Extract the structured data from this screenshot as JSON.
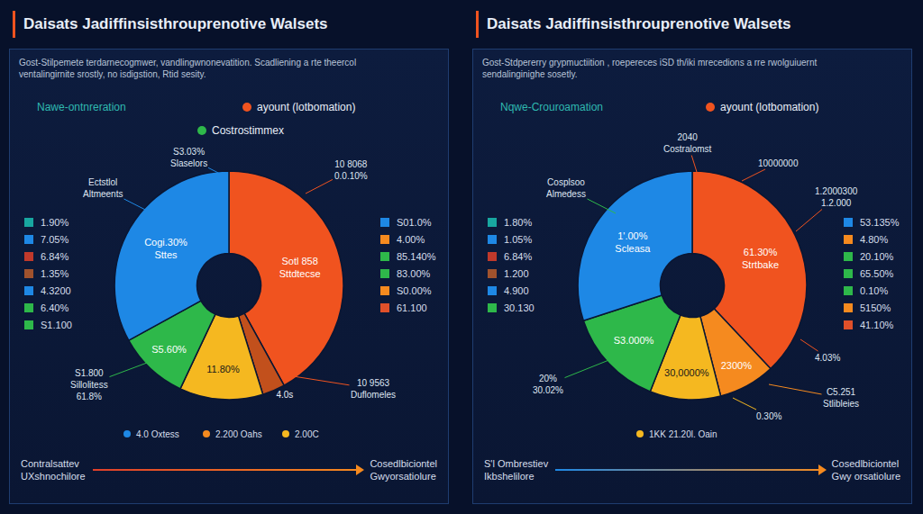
{
  "chart_data": [
    {
      "type": "pie",
      "title": "Daisats Jadiffinsisthrouprenotive Walsets",
      "subtitle": [
        "Gost-Stilpemete terdarnecogmwer, vandlingwnonevatition. Scadliening a rte theercol",
        "ventalingirnite srostly, no isdigstion, Rtid sesity."
      ],
      "header": [
        {
          "name": "Nawe-ontnreration",
          "color": "#2fb9b0",
          "marker": "none"
        },
        {
          "name": "ayount (lotbomation)",
          "color": "#f0531f",
          "marker": "circle"
        },
        {
          "name": "Costrostimmex",
          "color": "#2eb84a",
          "marker": "circle"
        }
      ],
      "categories": [
        "Sotl 858 Sttdtecse",
        "4.0s",
        "11.80%",
        "S5.60%",
        "Cogi.30% Sttes"
      ],
      "values": [
        42,
        3.2,
        11.8,
        10,
        33
      ],
      "colors": [
        "#f0531f",
        "#c2501c",
        "#f5b820",
        "#2eb84a",
        "#1e88e5"
      ],
      "callouts": [
        {
          "lines": [
            "S3.03%",
            "Slaselors"
          ],
          "color": "#1e88e5"
        },
        {
          "lines": [
            "Ectstlol",
            "Altmeents"
          ],
          "color": "#1e88e5"
        },
        {
          "lines": [
            "10 8068",
            "0.0.10%"
          ],
          "color": "#f0531f"
        },
        {
          "lines": [
            "10 9563",
            "Duflomeles"
          ],
          "color": "#f0531f"
        },
        {
          "lines": [
            "S1.800",
            "Sillolitess",
            "61.8%"
          ],
          "color": "#2eb84a"
        }
      ],
      "list_left": [
        {
          "label": "1.90%",
          "color": "#18a7a0"
        },
        {
          "label": "7.05%",
          "color": "#1e88e5"
        },
        {
          "label": "6.84%",
          "color": "#c0392b"
        },
        {
          "label": "1.35%",
          "color": "#a0522d"
        },
        {
          "label": "4.3200",
          "color": "#1e88e5"
        },
        {
          "label": "6.40%",
          "color": "#2eb84a"
        },
        {
          "label": "S1.100",
          "color": "#2eb84a"
        }
      ],
      "list_right": [
        {
          "label": "S01.0%",
          "color": "#1e88e5"
        },
        {
          "label": "4.00%",
          "color": "#f58a1f"
        },
        {
          "label": "85.140%",
          "color": "#2eb84a"
        },
        {
          "label": "83.00%",
          "color": "#2eb84a"
        },
        {
          "label": "S0.00%",
          "color": "#f58a1f"
        },
        {
          "label": "61.100",
          "color": "#e0502a"
        }
      ],
      "bottom_legend": [
        {
          "label": "4.0 Oxtess",
          "color": "#1e88e5"
        },
        {
          "label": "2.200 Oahs",
          "color": "#f58a1f"
        },
        {
          "label": "2.00C",
          "color": "#f5b820"
        }
      ],
      "footer": {
        "left": [
          "Contralsattev",
          "UXshnochilore"
        ],
        "right": [
          "Cosedlbiciontel",
          "Gwyorsatiolure"
        ],
        "colors": [
          "#e0402a",
          "#f58a1f"
        ]
      }
    },
    {
      "type": "pie",
      "title": "Daisats Jadiffinsisthrouprenotive Walsets",
      "subtitle": [
        "Gost-Stdpererry grypmuctiition , roepereces iSD th/iki mrecedions a rre rwolguiuernt",
        "sendalinginighe sosetly."
      ],
      "header": [
        {
          "name": "Nqwe-Crouroamation",
          "color": "#2fb9b0",
          "marker": "none"
        },
        {
          "name": "ayount (lotbomation)",
          "color": "#f0531f",
          "marker": "circle"
        }
      ],
      "categories": [
        "61.30% Strtbake",
        "2300%",
        "30,0000%",
        "S3.000%",
        "1'.00% Scleasa"
      ],
      "values": [
        38,
        8,
        10,
        14,
        30
      ],
      "colors": [
        "#f0531f",
        "#f58a1f",
        "#f5b820",
        "#2eb84a",
        "#1e88e5"
      ],
      "callouts": [
        {
          "lines": [
            "2040",
            "Costralomst"
          ],
          "color": "#f0531f"
        },
        {
          "lines": [
            "Cosplsoo",
            "Almedess"
          ],
          "color": "#2eb84a"
        },
        {
          "lines": [
            "10000000"
          ],
          "color": "#f0531f"
        },
        {
          "lines": [
            "1.2000300",
            "1.2.000"
          ],
          "color": "#f0531f"
        },
        {
          "lines": [
            "4.03%"
          ],
          "color": "#f0531f"
        },
        {
          "lines": [
            "C5.251",
            "Stlibleies"
          ],
          "color": "#f58a1f"
        },
        {
          "lines": [
            "20%",
            "30.02%"
          ],
          "color": "#2eb84a"
        },
        {
          "lines": [
            "0.30%"
          ],
          "color": "#f5b820"
        }
      ],
      "list_left": [
        {
          "label": "1.80%",
          "color": "#18a7a0"
        },
        {
          "label": "1.05%",
          "color": "#1e88e5"
        },
        {
          "label": "6.84%",
          "color": "#c0392b"
        },
        {
          "label": "1.200",
          "color": "#a0522d"
        },
        {
          "label": "4.900",
          "color": "#1e88e5"
        },
        {
          "label": "30.130",
          "color": "#2eb84a"
        }
      ],
      "list_right": [
        {
          "label": "53.135%",
          "color": "#1e88e5"
        },
        {
          "label": "4.80%",
          "color": "#f58a1f"
        },
        {
          "label": "20.10%",
          "color": "#2eb84a"
        },
        {
          "label": "65.50%",
          "color": "#2eb84a"
        },
        {
          "label": "0.10%",
          "color": "#2eb84a"
        },
        {
          "label": "5150%",
          "color": "#f58a1f"
        },
        {
          "label": "41.10%",
          "color": "#e0502a"
        }
      ],
      "bottom_legend": [
        {
          "label": "1KK 21.20l. Oain",
          "color": "#f5b820"
        }
      ],
      "footer": {
        "left": [
          "S'l Ombrestiev",
          "Ikbshelilore"
        ],
        "right": [
          "Cosedlbiciontel",
          "Gwy orsatiolure"
        ],
        "colors": [
          "#1e88e5",
          "#f58a1f"
        ]
      }
    }
  ]
}
